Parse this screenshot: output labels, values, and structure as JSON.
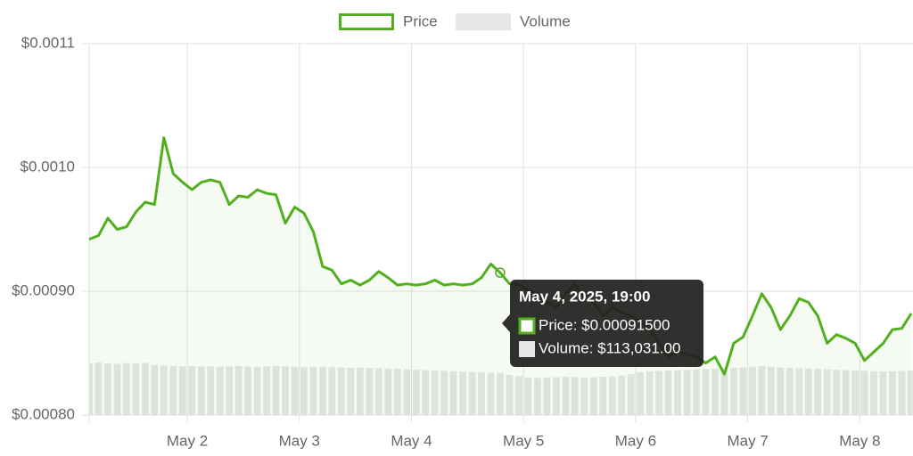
{
  "chart_data": {
    "type": "line",
    "x": [
      "2025-05-01T03:00",
      "2025-05-01T05:00",
      "2025-05-01T07:00",
      "2025-05-01T09:00",
      "2025-05-01T11:00",
      "2025-05-01T13:00",
      "2025-05-01T15:00",
      "2025-05-01T17:00",
      "2025-05-01T19:00",
      "2025-05-01T21:00",
      "2025-05-01T23:00",
      "2025-05-02T01:00",
      "2025-05-02T03:00",
      "2025-05-02T05:00",
      "2025-05-02T07:00",
      "2025-05-02T09:00",
      "2025-05-02T11:00",
      "2025-05-02T13:00",
      "2025-05-02T15:00",
      "2025-05-02T17:00",
      "2025-05-02T19:00",
      "2025-05-02T21:00",
      "2025-05-02T23:00",
      "2025-05-03T01:00",
      "2025-05-03T03:00",
      "2025-05-03T05:00",
      "2025-05-03T07:00",
      "2025-05-03T09:00",
      "2025-05-03T11:00",
      "2025-05-03T13:00",
      "2025-05-03T15:00",
      "2025-05-03T17:00",
      "2025-05-03T19:00",
      "2025-05-03T21:00",
      "2025-05-03T23:00",
      "2025-05-04T01:00",
      "2025-05-04T03:00",
      "2025-05-04T05:00",
      "2025-05-04T07:00",
      "2025-05-04T09:00",
      "2025-05-04T11:00",
      "2025-05-04T13:00",
      "2025-05-04T15:00",
      "2025-05-04T17:00",
      "2025-05-04T19:00",
      "2025-05-04T21:00",
      "2025-05-04T23:00",
      "2025-05-05T01:00",
      "2025-05-05T03:00",
      "2025-05-05T05:00",
      "2025-05-05T07:00",
      "2025-05-05T09:00",
      "2025-05-05T11:00",
      "2025-05-05T13:00",
      "2025-05-05T15:00",
      "2025-05-05T17:00",
      "2025-05-05T19:00",
      "2025-05-05T21:00",
      "2025-05-05T23:00",
      "2025-05-06T01:00",
      "2025-05-06T03:00",
      "2025-05-06T05:00",
      "2025-05-06T07:00",
      "2025-05-06T09:00",
      "2025-05-06T11:00",
      "2025-05-06T13:00",
      "2025-05-06T15:00",
      "2025-05-06T17:00",
      "2025-05-06T19:00",
      "2025-05-06T21:00",
      "2025-05-06T23:00",
      "2025-05-07T01:00",
      "2025-05-07T03:00",
      "2025-05-07T05:00",
      "2025-05-07T07:00",
      "2025-05-07T09:00",
      "2025-05-07T11:00",
      "2025-05-07T13:00",
      "2025-05-07T15:00",
      "2025-05-07T17:00",
      "2025-05-07T19:00",
      "2025-05-07T21:00",
      "2025-05-07T23:00",
      "2025-05-08T01:00",
      "2025-05-08T03:00",
      "2025-05-08T05:00",
      "2025-05-08T07:00",
      "2025-05-08T09:00",
      "2025-05-08T11:00"
    ],
    "series": [
      {
        "name": "Price",
        "color": "#52b01f",
        "values": [
          0.000942,
          0.000945,
          0.000959,
          0.00095,
          0.000952,
          0.000964,
          0.000972,
          0.00097,
          0.001024,
          0.000995,
          0.000988,
          0.000982,
          0.000988,
          0.00099,
          0.000988,
          0.00097,
          0.000977,
          0.000976,
          0.000982,
          0.000979,
          0.000978,
          0.000955,
          0.000968,
          0.000963,
          0.000948,
          0.00092,
          0.000917,
          0.000906,
          0.000909,
          0.000905,
          0.000909,
          0.000916,
          0.000911,
          0.000905,
          0.000906,
          0.000905,
          0.000906,
          0.000909,
          0.000905,
          0.000906,
          0.000905,
          0.000906,
          0.000911,
          0.000922,
          0.000915,
          0.000906,
          0.000905,
          0.000901,
          0.000898,
          0.000891,
          0.000887,
          0.000898,
          0.000906,
          0.000894,
          0.000891,
          0.00088,
          0.000887,
          0.000883,
          0.00088,
          0.000876,
          0.000869,
          0.000858,
          0.000847,
          0.000851,
          0.000849,
          0.000847,
          0.000842,
          0.000847,
          0.000833,
          0.000858,
          0.000863,
          0.00088,
          0.000898,
          0.000887,
          0.000869,
          0.00088,
          0.000894,
          0.000891,
          0.00088,
          0.000858,
          0.000865,
          0.000862,
          0.000858,
          0.000844,
          0.000851,
          0.000858,
          0.000869,
          0.00087,
          0.000882
        ]
      },
      {
        "name": "Volume",
        "color": "#e6e6e6",
        "axis": "y2",
        "values": [
          140000,
          141000,
          139000,
          138000,
          140000,
          139000,
          140000,
          135000,
          133000,
          132000,
          131000,
          132000,
          131000,
          131000,
          130000,
          131000,
          132000,
          131000,
          130000,
          131000,
          132000,
          131000,
          130000,
          129000,
          130000,
          130000,
          129000,
          128000,
          127000,
          128000,
          127000,
          126000,
          125000,
          124000,
          123000,
          122000,
          121000,
          120000,
          119000,
          118000,
          117000,
          116000,
          115000,
          114000,
          113031,
          108000,
          104000,
          101000,
          100000,
          101000,
          102000,
          103000,
          102000,
          101000,
          102000,
          103000,
          104000,
          106000,
          110000,
          115000,
          118000,
          119000,
          120000,
          121000,
          122000,
          123000,
          124000,
          125000,
          126000,
          127000,
          128000,
          130000,
          132000,
          130000,
          128000,
          127000,
          126000,
          125000,
          124000,
          123000,
          122000,
          121000,
          120000,
          119000,
          118000,
          117000,
          118000,
          119000,
          120000
        ]
      }
    ],
    "xlim": [
      "2025-05-01T03:00",
      "2025-05-08T11:00"
    ],
    "xticks": [
      {
        "value": "2025-05-02T00:00",
        "label": "May 2"
      },
      {
        "value": "2025-05-03T00:00",
        "label": "May 3"
      },
      {
        "value": "2025-05-04T00:00",
        "label": "May 4"
      },
      {
        "value": "2025-05-05T00:00",
        "label": "May 5"
      },
      {
        "value": "2025-05-06T00:00",
        "label": "May 6"
      },
      {
        "value": "2025-05-07T00:00",
        "label": "May 7"
      },
      {
        "value": "2025-05-08T00:00",
        "label": "May 8"
      }
    ],
    "ylim": [
      0.0008,
      0.0011
    ],
    "yticks": [
      {
        "value": 0.0008,
        "label": "$0.00080"
      },
      {
        "value": 0.0009,
        "label": "$0.00090"
      },
      {
        "value": 0.001,
        "label": "$0.0010"
      },
      {
        "value": 0.0011,
        "label": "$0.0011"
      }
    ],
    "y2lim": [
      0,
      1000000
    ],
    "grid": true,
    "legend": "top",
    "tooltip": {
      "title": "May 4, 2025, 19:00",
      "lines": [
        "Price: $0.00091500",
        "Volume: $113,031.00"
      ]
    }
  }
}
